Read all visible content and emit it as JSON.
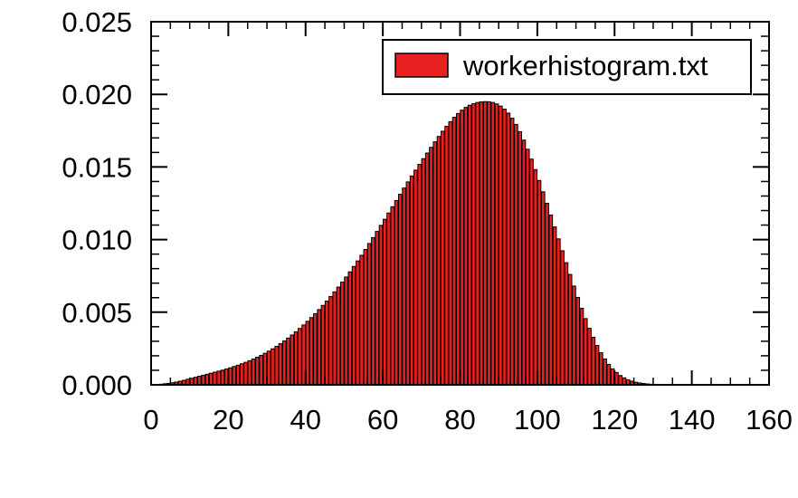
{
  "chart_data": {
    "type": "bar",
    "xlim": [
      0,
      160
    ],
    "ylim": [
      0,
      0.025
    ],
    "x_ticks": [
      0,
      20,
      40,
      60,
      80,
      100,
      120,
      140,
      160
    ],
    "x_tick_labels": [
      "0",
      "20",
      "40",
      "60",
      "80",
      "100",
      "120",
      "140",
      "160"
    ],
    "y_ticks": [
      0.0,
      0.005,
      0.01,
      0.015,
      0.02,
      0.025
    ],
    "y_tick_labels": [
      "0.000",
      "0.005",
      "0.010",
      "0.015",
      "0.020",
      "0.025"
    ],
    "grid": false,
    "legend": {
      "position": "top-right",
      "entries": [
        "workerhistogram.txt"
      ]
    },
    "bar_color": "#e8201f",
    "bar_edge_color": "#000000",
    "series": [
      {
        "name": "workerhistogram.txt",
        "x": [
          0,
          1,
          2,
          3,
          4,
          5,
          6,
          7,
          8,
          9,
          10,
          11,
          12,
          13,
          14,
          15,
          16,
          17,
          18,
          19,
          20,
          21,
          22,
          23,
          24,
          25,
          26,
          27,
          28,
          29,
          30,
          31,
          32,
          33,
          34,
          35,
          36,
          37,
          38,
          39,
          40,
          41,
          42,
          43,
          44,
          45,
          46,
          47,
          48,
          49,
          50,
          51,
          52,
          53,
          54,
          55,
          56,
          57,
          58,
          59,
          60,
          61,
          62,
          63,
          64,
          65,
          66,
          67,
          68,
          69,
          70,
          71,
          72,
          73,
          74,
          75,
          76,
          77,
          78,
          79,
          80,
          81,
          82,
          83,
          84,
          85,
          86,
          87,
          88,
          89,
          90,
          91,
          92,
          93,
          94,
          95,
          96,
          97,
          98,
          99,
          100,
          101,
          102,
          103,
          104,
          105,
          106,
          107,
          108,
          109,
          110,
          111,
          112,
          113,
          114,
          115,
          116,
          117,
          118,
          119,
          120,
          121,
          122,
          123,
          124,
          125,
          126,
          127,
          128,
          129,
          130,
          131,
          132,
          133,
          134,
          135,
          136,
          137,
          138,
          139,
          140
        ],
        "values": [
          1e-05,
          2e-05,
          4e-05,
          7e-05,
          0.0001,
          0.00014,
          0.00019,
          0.00025,
          0.00031,
          0.00038,
          0.00045,
          0.00052,
          0.00059,
          0.00066,
          0.00073,
          0.0008,
          0.00087,
          0.00094,
          0.00101,
          0.00109,
          0.00117,
          0.00126,
          0.00135,
          0.00145,
          0.00155,
          0.00166,
          0.00178,
          0.0019,
          0.00203,
          0.00217,
          0.00232,
          0.00248,
          0.00265,
          0.00283,
          0.00302,
          0.00322,
          0.00343,
          0.00365,
          0.00388,
          0.00412,
          0.00437,
          0.00463,
          0.0049,
          0.00518,
          0.00547,
          0.00577,
          0.00608,
          0.0064,
          0.00673,
          0.00707,
          0.00742,
          0.00778,
          0.00815,
          0.00853,
          0.00892,
          0.00932,
          0.00973,
          0.01014,
          0.01056,
          0.01098,
          0.0114,
          0.01183,
          0.01226,
          0.01269,
          0.01312,
          0.01355,
          0.01397,
          0.01438,
          0.01478,
          0.01518,
          0.01557,
          0.01596,
          0.01635,
          0.01673,
          0.0171,
          0.01746,
          0.0178,
          0.01812,
          0.01842,
          0.01868,
          0.01891,
          0.0191,
          0.01925,
          0.01936,
          0.01944,
          0.01948,
          0.0195,
          0.01949,
          0.01944,
          0.01934,
          0.01919,
          0.01898,
          0.01871,
          0.01836,
          0.01793,
          0.01743,
          0.01685,
          0.01622,
          0.01554,
          0.01482,
          0.01407,
          0.01329,
          0.0125,
          0.01169,
          0.01087,
          0.01005,
          0.00923,
          0.00841,
          0.0076,
          0.0068,
          0.00602,
          0.00527,
          0.00456,
          0.00389,
          0.00327,
          0.00271,
          0.00221,
          0.00178,
          0.00141,
          0.0011,
          0.00085,
          0.00064,
          0.00048,
          0.00035,
          0.00025,
          0.00018,
          0.00013,
          9e-05,
          6e-05,
          4e-05,
          3e-05,
          2e-05,
          1e-05,
          1e-05,
          1e-05,
          1e-05,
          0.0,
          0.0,
          0.0,
          0.0,
          0.0
        ]
      }
    ]
  }
}
